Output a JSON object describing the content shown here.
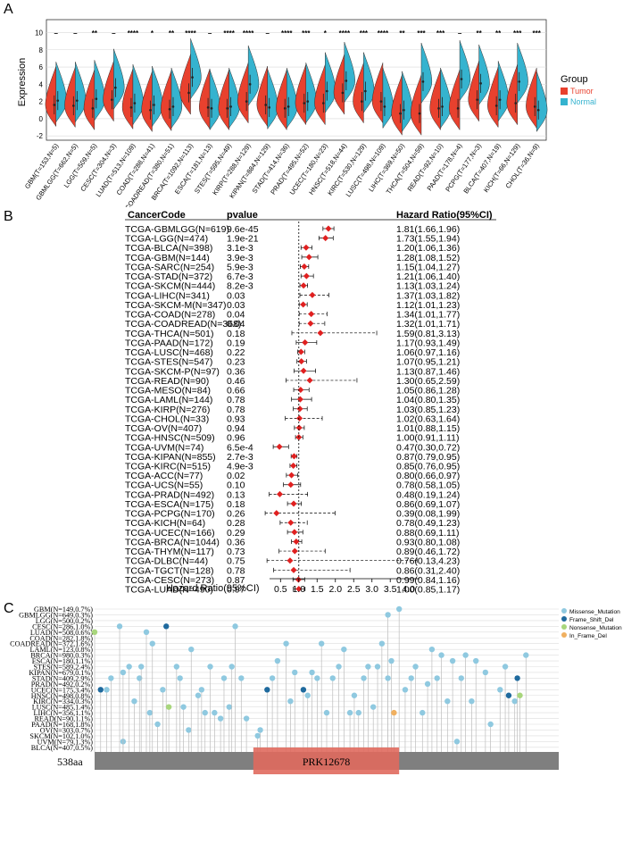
{
  "panels": {
    "a": "A",
    "b": "B",
    "c": "C"
  },
  "colors": {
    "tumor": "#e8412e",
    "normal": "#35b3cf",
    "forest_point": "#e02020",
    "lolli_stick": "#bdbdbd",
    "axis_bar": "#808080",
    "domain": "#e06a5e"
  },
  "chart_data": [
    {
      "type": "violin",
      "ylabel": "Expression",
      "ylim": [
        -2.5,
        11.5
      ],
      "yticks": [
        -2,
        0,
        2,
        4,
        6,
        8,
        10
      ],
      "legend": {
        "title": "Group",
        "placement": "right",
        "entries": [
          "Tumor",
          "Normal"
        ]
      },
      "categories": [
        "GBM(T=153,N=5)",
        "GBMLGG(T=662,N=5)",
        "LGG(T=509,N=5)",
        "CESC(T=304,N=3)",
        "LUAD(T=513,N=109)",
        "COAD(T=288,N=41)",
        "COADREAD(T=380,N=51)",
        "BRCA(T=1092,N=113)",
        "ESCA(T=181,N=13)",
        "STES(T=595,N=49)",
        "KIRP(T=288,N=129)",
        "KIPAN(T=884,N=129)",
        "STAD(T=414,N=36)",
        "PRAD(T=495,N=52)",
        "UCEC(T=180,N=23)",
        "HNSC(T=518,N=44)",
        "KIRC(T=530,N=129)",
        "LUSC(T=498,N=109)",
        "LIHC(T=369,N=50)",
        "THCA(T=504,N=59)",
        "READ(T=92,N=10)",
        "PAAD(T=178,N=4)",
        "PCPG(T=177,N=3)",
        "BLCA(T=407,N=19)",
        "KICH(T=66,N=129)",
        "CHOL(T=36,N=9)"
      ],
      "significance": [
        "–",
        "–",
        "**",
        "–",
        "****",
        "*",
        "**",
        "****",
        "–",
        "****",
        "****",
        "–",
        "****",
        "***",
        "*",
        "****",
        "***",
        "****",
        "**",
        "***",
        "***",
        "–",
        "**",
        "**",
        "***",
        "***"
      ],
      "series": [
        {
          "name": "Tumor",
          "median": [
            1.6,
            1.5,
            1.2,
            2.2,
            1.3,
            1.0,
            1.1,
            3.0,
            1.3,
            1.2,
            2.0,
            1.6,
            1.2,
            1.8,
            1.8,
            3.0,
            2.0,
            2.0,
            0.6,
            0.6,
            1.2,
            1.2,
            2.2,
            1.5,
            1.8,
            1.4
          ]
        },
        {
          "name": "Normal",
          "median": [
            2.1,
            2.1,
            2.3,
            3.6,
            1.8,
            1.6,
            1.4,
            4.8,
            1.2,
            1.4,
            4.0,
            1.3,
            1.4,
            2.0,
            3.2,
            4.4,
            3.2,
            1.4,
            1.0,
            4.3,
            1.4,
            4.6,
            4.1,
            2.2,
            4.3,
            1.0
          ]
        }
      ]
    },
    {
      "type": "forest",
      "columns": [
        "CancerCode",
        "pvalue",
        "Hazard Ratio(95%CI)"
      ],
      "xlabel": "Hazard Ratio(95%CI)",
      "xticks": [
        "0.5",
        "1.0",
        "1.5",
        "2.0",
        "2.5",
        "3.0",
        "3.5",
        "4.0"
      ],
      "xlim": [
        0.0,
        4.3
      ],
      "rows": [
        {
          "code": "TCGA-GBMLGG(N=619)",
          "pvalue": "9.6e-45",
          "hr_text": "1.81(1.66,1.96)",
          "hr": 1.81,
          "lo": 1.66,
          "hi": 1.96
        },
        {
          "code": "TCGA-LGG(N=474)",
          "pvalue": "1.9e-21",
          "hr_text": "1.73(1.55,1.94)",
          "hr": 1.73,
          "lo": 1.55,
          "hi": 1.94
        },
        {
          "code": "TCGA-BLCA(N=398)",
          "pvalue": "3.1e-3",
          "hr_text": "1.20(1.06,1.36)",
          "hr": 1.2,
          "lo": 1.06,
          "hi": 1.36
        },
        {
          "code": "TCGA-GBM(N=144)",
          "pvalue": "3.9e-3",
          "hr_text": "1.28(1.08,1.52)",
          "hr": 1.28,
          "lo": 1.08,
          "hi": 1.52
        },
        {
          "code": "TCGA-SARC(N=254)",
          "pvalue": "5.9e-3",
          "hr_text": "1.15(1.04,1.27)",
          "hr": 1.15,
          "lo": 1.04,
          "hi": 1.27
        },
        {
          "code": "TCGA-STAD(N=372)",
          "pvalue": "6.7e-3",
          "hr_text": "1.21(1.06,1.40)",
          "hr": 1.21,
          "lo": 1.06,
          "hi": 1.4
        },
        {
          "code": "TCGA-SKCM(N=444)",
          "pvalue": "8.2e-3",
          "hr_text": "1.13(1.03,1.24)",
          "hr": 1.13,
          "lo": 1.03,
          "hi": 1.24
        },
        {
          "code": "TCGA-LIHC(N=341)",
          "pvalue": "0.03",
          "hr_text": "1.37(1.03,1.82)",
          "hr": 1.37,
          "lo": 1.03,
          "hi": 1.82
        },
        {
          "code": "TCGA-SKCM-M(N=347)",
          "pvalue": "0.03",
          "hr_text": "1.12(1.01,1.23)",
          "hr": 1.12,
          "lo": 1.01,
          "hi": 1.23
        },
        {
          "code": "TCGA-COAD(N=278)",
          "pvalue": "0.04",
          "hr_text": "1.34(1.01,1.77)",
          "hr": 1.34,
          "lo": 1.01,
          "hi": 1.77
        },
        {
          "code": "TCGA-COADREAD(N=368)",
          "pvalue": "0.04",
          "hr_text": "1.32(1.01,1.71)",
          "hr": 1.32,
          "lo": 1.01,
          "hi": 1.71
        },
        {
          "code": "TCGA-THCA(N=501)",
          "pvalue": "0.18",
          "hr_text": "1.59(0.81,3.13)",
          "hr": 1.59,
          "lo": 0.81,
          "hi": 3.13
        },
        {
          "code": "TCGA-PAAD(N=172)",
          "pvalue": "0.19",
          "hr_text": "1.17(0.93,1.49)",
          "hr": 1.17,
          "lo": 0.93,
          "hi": 1.49
        },
        {
          "code": "TCGA-LUSC(N=468)",
          "pvalue": "0.22",
          "hr_text": "1.06(0.97,1.16)",
          "hr": 1.06,
          "lo": 0.97,
          "hi": 1.16
        },
        {
          "code": "TCGA-STES(N=547)",
          "pvalue": "0.23",
          "hr_text": "1.07(0.95,1.21)",
          "hr": 1.07,
          "lo": 0.95,
          "hi": 1.21
        },
        {
          "code": "TCGA-SKCM-P(N=97)",
          "pvalue": "0.36",
          "hr_text": "1.13(0.87,1.46)",
          "hr": 1.13,
          "lo": 0.87,
          "hi": 1.46
        },
        {
          "code": "TCGA-READ(N=90)",
          "pvalue": "0.46",
          "hr_text": "1.30(0.65,2.59)",
          "hr": 1.3,
          "lo": 0.65,
          "hi": 2.59
        },
        {
          "code": "TCGA-MESO(N=84)",
          "pvalue": "0.66",
          "hr_text": "1.05(0.86,1.28)",
          "hr": 1.05,
          "lo": 0.86,
          "hi": 1.28
        },
        {
          "code": "TCGA-LAML(N=144)",
          "pvalue": "0.78",
          "hr_text": "1.04(0.80,1.35)",
          "hr": 1.04,
          "lo": 0.8,
          "hi": 1.35
        },
        {
          "code": "TCGA-KIRP(N=276)",
          "pvalue": "0.78",
          "hr_text": "1.03(0.85,1.23)",
          "hr": 1.03,
          "lo": 0.85,
          "hi": 1.23
        },
        {
          "code": "TCGA-CHOL(N=33)",
          "pvalue": "0.93",
          "hr_text": "1.02(0.63,1.64)",
          "hr": 1.02,
          "lo": 0.63,
          "hi": 1.64
        },
        {
          "code": "TCGA-OV(N=407)",
          "pvalue": "0.94",
          "hr_text": "1.01(0.88,1.15)",
          "hr": 1.01,
          "lo": 0.88,
          "hi": 1.15
        },
        {
          "code": "TCGA-HNSC(N=509)",
          "pvalue": "0.96",
          "hr_text": "1.00(0.91,1.11)",
          "hr": 1.0,
          "lo": 0.91,
          "hi": 1.11
        },
        {
          "code": "TCGA-UVM(N=74)",
          "pvalue": "6.5e-4",
          "hr_text": "0.47(0.30,0.72)",
          "hr": 0.47,
          "lo": 0.3,
          "hi": 0.72
        },
        {
          "code": "TCGA-KIPAN(N=855)",
          "pvalue": "2.7e-3",
          "hr_text": "0.87(0.79,0.95)",
          "hr": 0.87,
          "lo": 0.79,
          "hi": 0.95
        },
        {
          "code": "TCGA-KIRC(N=515)",
          "pvalue": "4.9e-3",
          "hr_text": "0.85(0.76,0.95)",
          "hr": 0.85,
          "lo": 0.76,
          "hi": 0.95
        },
        {
          "code": "TCGA-ACC(N=77)",
          "pvalue": "0.02",
          "hr_text": "0.80(0.66,0.97)",
          "hr": 0.8,
          "lo": 0.66,
          "hi": 0.97
        },
        {
          "code": "TCGA-UCS(N=55)",
          "pvalue": "0.10",
          "hr_text": "0.78(0.58,1.05)",
          "hr": 0.78,
          "lo": 0.58,
          "hi": 1.05
        },
        {
          "code": "TCGA-PRAD(N=492)",
          "pvalue": "0.13",
          "hr_text": "0.48(0.19,1.24)",
          "hr": 0.48,
          "lo": 0.19,
          "hi": 1.24
        },
        {
          "code": "TCGA-ESCA(N=175)",
          "pvalue": "0.18",
          "hr_text": "0.86(0.69,1.07)",
          "hr": 0.86,
          "lo": 0.69,
          "hi": 1.07
        },
        {
          "code": "TCGA-PCPG(N=170)",
          "pvalue": "0.26",
          "hr_text": "0.39(0.08,1.99)",
          "hr": 0.39,
          "lo": 0.08,
          "hi": 1.99
        },
        {
          "code": "TCGA-KICH(N=64)",
          "pvalue": "0.28",
          "hr_text": "0.78(0.49,1.23)",
          "hr": 0.78,
          "lo": 0.49,
          "hi": 1.23
        },
        {
          "code": "TCGA-UCEC(N=166)",
          "pvalue": "0.29",
          "hr_text": "0.88(0.69,1.11)",
          "hr": 0.88,
          "lo": 0.69,
          "hi": 1.11
        },
        {
          "code": "TCGA-BRCA(N=1044)",
          "pvalue": "0.36",
          "hr_text": "0.93(0.80,1.08)",
          "hr": 0.93,
          "lo": 0.8,
          "hi": 1.08
        },
        {
          "code": "TCGA-THYM(N=117)",
          "pvalue": "0.73",
          "hr_text": "0.89(0.46,1.72)",
          "hr": 0.89,
          "lo": 0.46,
          "hi": 1.72
        },
        {
          "code": "TCGA-DLBC(N=44)",
          "pvalue": "0.75",
          "hr_text": "0.76(0.13,4.23)",
          "hr": 0.76,
          "lo": 0.13,
          "hi": 4.23
        },
        {
          "code": "TCGA-TGCT(N=128)",
          "pvalue": "0.78",
          "hr_text": "0.86(0.31,2.40)",
          "hr": 0.86,
          "lo": 0.31,
          "hi": 2.4
        },
        {
          "code": "TCGA-CESC(N=273)",
          "pvalue": "0.87",
          "hr_text": "0.99(0.84,1.16)",
          "hr": 0.99,
          "lo": 0.84,
          "hi": 1.16
        },
        {
          "code": "TCGA-LUAD(N=490)",
          "pvalue": "0.97",
          "hr_text": "1.00(0.85,1.17)",
          "hr": 1.0,
          "lo": 0.85,
          "hi": 1.17
        }
      ]
    },
    {
      "type": "lollipop",
      "protein_length_label": "538aa",
      "protein_length": 538,
      "domain": {
        "name": "PRK12678",
        "start": 184,
        "end": 353
      },
      "legend": [
        "Missense_Mutation",
        "Frame_Shift_Del",
        "Nonsense_Mutation",
        "In_Frame_Del"
      ],
      "legend_colors": [
        "#8fc9e0",
        "#1f6a9e",
        "#a8d67c",
        "#f0b060"
      ],
      "cancers": [
        "GBM(N=149,0.7%)",
        "GBMLGG(N=649,0.3%)",
        "LGG(N=500,0.2%)",
        "CESC(N=286,1.0%)",
        "LUAD(N=508,0.6%)",
        "COAD(N=282,1.8%)",
        "COADREAD(N=372,1.6%)",
        "LAML(N=123,0.8%)",
        "BRCA(N=980,0.3%)",
        "ESCA(N=180,1.1%)",
        "STES(N=589,2.4%)",
        "KIPAN(N=679,0.1%)",
        "STAD(N=409,2.9%)",
        "PRAD(N=492,0.2%)",
        "UCEC(N=175,3.4%)",
        "HNSC(N=498,0.8%)",
        "KIRC(N=334,0.3%)",
        "LUSC(N=485,1.4%)",
        "LIHC(N=356,1.1%)",
        "READ(N=90,1.1%)",
        "PAAD(N=168,1.8%)",
        "OV(N=303,0.7%)",
        "SKCM(N=102,1.0%)",
        "UVM(N=79,1.3%)",
        "BLCA(N=407,0.5%)"
      ],
      "mutations": [
        {
          "pos": 0,
          "row": 4,
          "type": 2
        },
        {
          "pos": 7,
          "row": 14,
          "type": 1
        },
        {
          "pos": 14,
          "row": 14,
          "type": 0
        },
        {
          "pos": 19,
          "row": 12,
          "type": 0
        },
        {
          "pos": 29,
          "row": 3,
          "type": 0
        },
        {
          "pos": 33,
          "row": 23,
          "type": 0
        },
        {
          "pos": 33,
          "row": 11,
          "type": 0
        },
        {
          "pos": 40,
          "row": 10,
          "type": 0
        },
        {
          "pos": 46,
          "row": 16,
          "type": 0
        },
        {
          "pos": 52,
          "row": 12,
          "type": 0
        },
        {
          "pos": 54,
          "row": 10,
          "type": 0
        },
        {
          "pos": 60,
          "row": 4,
          "type": 0
        },
        {
          "pos": 64,
          "row": 18,
          "type": 0
        },
        {
          "pos": 67,
          "row": 6,
          "type": 0
        },
        {
          "pos": 73,
          "row": 20,
          "type": 0
        },
        {
          "pos": 79,
          "row": 14,
          "type": 0
        },
        {
          "pos": 83,
          "row": 3,
          "type": 1
        },
        {
          "pos": 86,
          "row": 17,
          "type": 2
        },
        {
          "pos": 95,
          "row": 10,
          "type": 0
        },
        {
          "pos": 99,
          "row": 12,
          "type": 0
        },
        {
          "pos": 103,
          "row": 17,
          "type": 0
        },
        {
          "pos": 109,
          "row": 21,
          "type": 0
        },
        {
          "pos": 112,
          "row": 7,
          "type": 0
        },
        {
          "pos": 120,
          "row": 15,
          "type": 0
        },
        {
          "pos": 124,
          "row": 14,
          "type": 0
        },
        {
          "pos": 128,
          "row": 18,
          "type": 0
        },
        {
          "pos": 134,
          "row": 10,
          "type": 0
        },
        {
          "pos": 139,
          "row": 18,
          "type": 0
        },
        {
          "pos": 146,
          "row": 19,
          "type": 0
        },
        {
          "pos": 150,
          "row": 12,
          "type": 0
        },
        {
          "pos": 156,
          "row": 17,
          "type": 0
        },
        {
          "pos": 159,
          "row": 10,
          "type": 0
        },
        {
          "pos": 163,
          "row": 3,
          "type": 0
        },
        {
          "pos": 170,
          "row": 12,
          "type": 0
        },
        {
          "pos": 176,
          "row": 19,
          "type": 0
        },
        {
          "pos": 189,
          "row": 22,
          "type": 0
        },
        {
          "pos": 192,
          "row": 21,
          "type": 0
        },
        {
          "pos": 200,
          "row": 14,
          "type": 1
        },
        {
          "pos": 206,
          "row": 12,
          "type": 0
        },
        {
          "pos": 212,
          "row": 9,
          "type": 0
        },
        {
          "pos": 222,
          "row": 6,
          "type": 0
        },
        {
          "pos": 227,
          "row": 16,
          "type": 0
        },
        {
          "pos": 232,
          "row": 11,
          "type": 0
        },
        {
          "pos": 242,
          "row": 14,
          "type": 1
        },
        {
          "pos": 247,
          "row": 15,
          "type": 0
        },
        {
          "pos": 252,
          "row": 11,
          "type": 0
        },
        {
          "pos": 258,
          "row": 12,
          "type": 0
        },
        {
          "pos": 263,
          "row": 6,
          "type": 0
        },
        {
          "pos": 269,
          "row": 18,
          "type": 0
        },
        {
          "pos": 276,
          "row": 12,
          "type": 0
        },
        {
          "pos": 283,
          "row": 10,
          "type": 0
        },
        {
          "pos": 289,
          "row": 7,
          "type": 0
        },
        {
          "pos": 296,
          "row": 18,
          "type": 0
        },
        {
          "pos": 301,
          "row": 15,
          "type": 0
        },
        {
          "pos": 306,
          "row": 18,
          "type": 0
        },
        {
          "pos": 312,
          "row": 12,
          "type": 0
        },
        {
          "pos": 317,
          "row": 10,
          "type": 0
        },
        {
          "pos": 323,
          "row": 17,
          "type": 0
        },
        {
          "pos": 328,
          "row": 10,
          "type": 0
        },
        {
          "pos": 333,
          "row": 6,
          "type": 0
        },
        {
          "pos": 340,
          "row": 1,
          "type": 0
        },
        {
          "pos": 340,
          "row": 12,
          "type": 0
        },
        {
          "pos": 344,
          "row": 9,
          "type": 0
        },
        {
          "pos": 347,
          "row": 18,
          "type": 3
        },
        {
          "pos": 353,
          "row": 0,
          "type": 0
        },
        {
          "pos": 360,
          "row": 14,
          "type": 0
        },
        {
          "pos": 367,
          "row": 12,
          "type": 0
        },
        {
          "pos": 372,
          "row": 10,
          "type": 0
        },
        {
          "pos": 380,
          "row": 18,
          "type": 0
        },
        {
          "pos": 386,
          "row": 13,
          "type": 0
        },
        {
          "pos": 391,
          "row": 7,
          "type": 0
        },
        {
          "pos": 397,
          "row": 12,
          "type": 0
        },
        {
          "pos": 402,
          "row": 8,
          "type": 0
        },
        {
          "pos": 409,
          "row": 16,
          "type": 0
        },
        {
          "pos": 415,
          "row": 9,
          "type": 0
        },
        {
          "pos": 420,
          "row": 23,
          "type": 0
        },
        {
          "pos": 425,
          "row": 12,
          "type": 0
        },
        {
          "pos": 430,
          "row": 8,
          "type": 0
        },
        {
          "pos": 437,
          "row": 16,
          "type": 0
        },
        {
          "pos": 442,
          "row": 9,
          "type": 0
        },
        {
          "pos": 453,
          "row": 11,
          "type": 0
        },
        {
          "pos": 459,
          "row": 20,
          "type": 0
        },
        {
          "pos": 470,
          "row": 14,
          "type": 0
        },
        {
          "pos": 476,
          "row": 10,
          "type": 0
        },
        {
          "pos": 480,
          "row": 15,
          "type": 1
        },
        {
          "pos": 487,
          "row": 16,
          "type": 0
        },
        {
          "pos": 490,
          "row": 12,
          "type": 1
        },
        {
          "pos": 493,
          "row": 15,
          "type": 2
        },
        {
          "pos": 500,
          "row": 8,
          "type": 0
        }
      ]
    }
  ]
}
